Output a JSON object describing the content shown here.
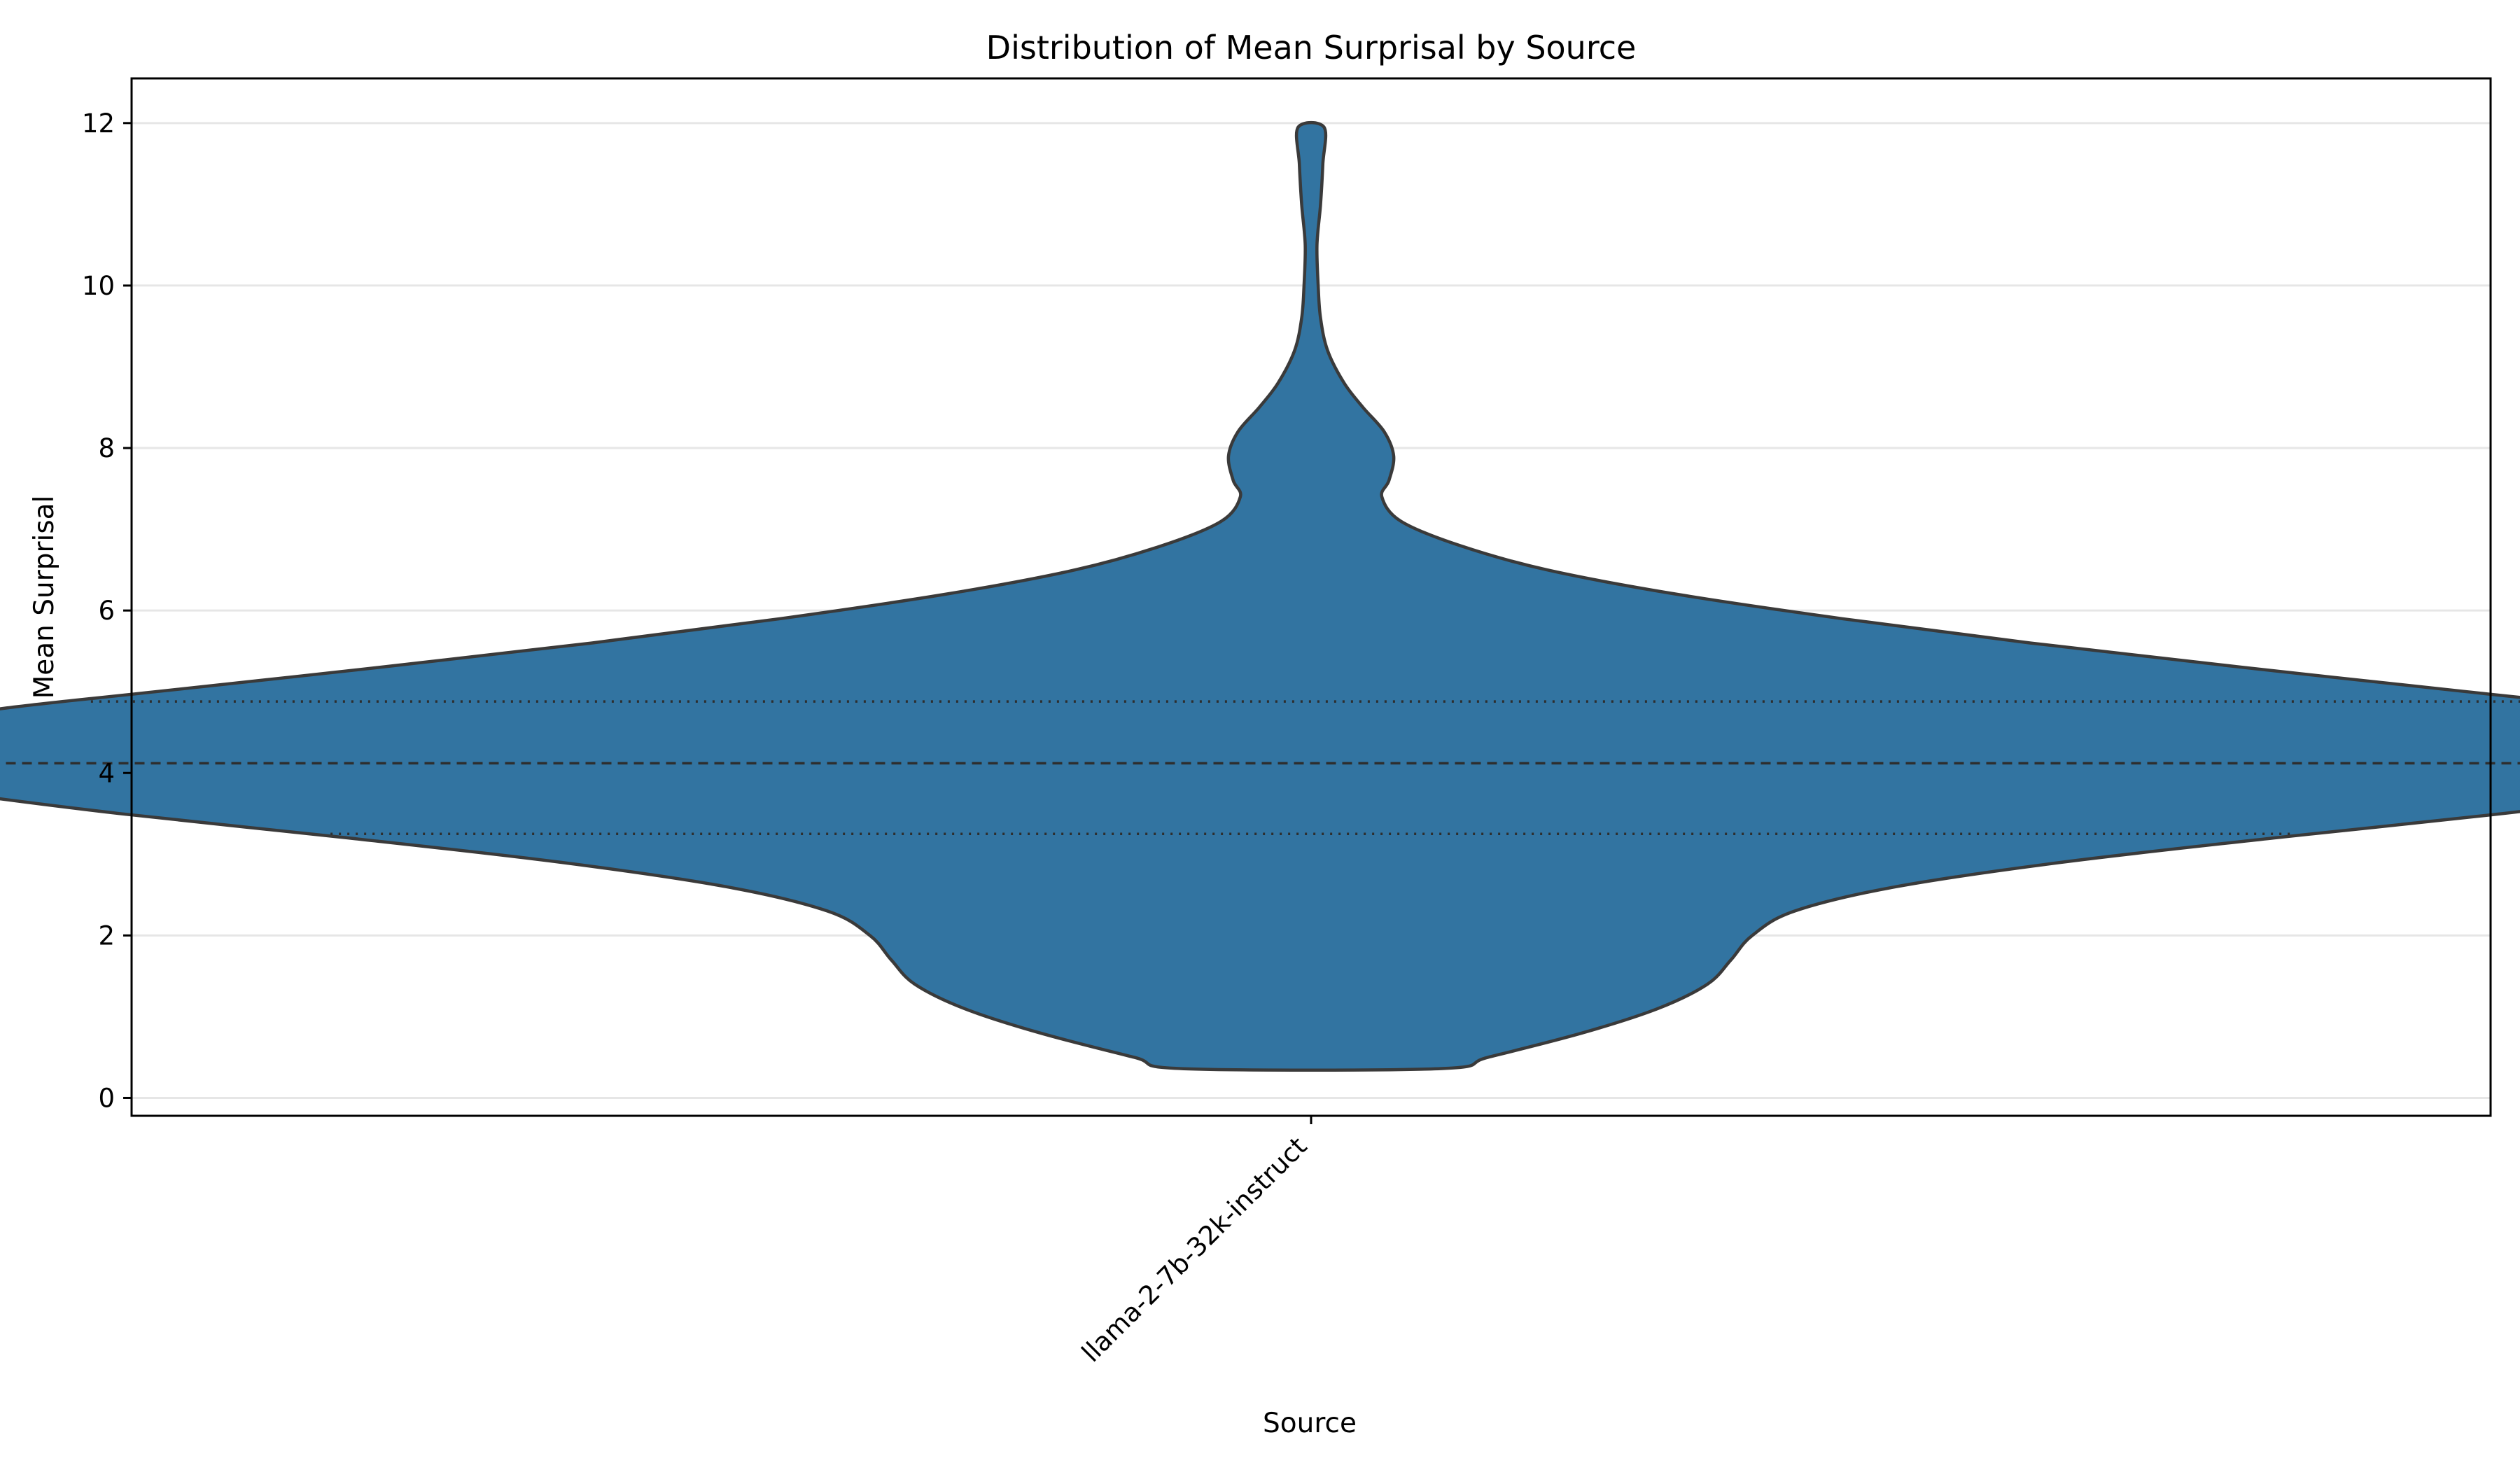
{
  "chart_data": {
    "type": "violin",
    "title": "Distribution of Mean Surprisal by Source",
    "xlabel": "Source",
    "ylabel": "Mean Surprisal",
    "categories": [
      "llama-2-7b-32k-instruct"
    ],
    "ylim": [
      -0.22,
      12.55
    ],
    "yticks": [
      0,
      2,
      4,
      6,
      8,
      10,
      12
    ],
    "grid": "y",
    "color": "#3274a1",
    "edge_color": "#3a3a3a",
    "violins": [
      {
        "name": "llama-2-7b-32k-instruct",
        "min": 0.36,
        "max": 11.95,
        "quartiles": {
          "q1": 3.25,
          "median": 4.12,
          "q3": 4.88
        },
        "density_profile": [
          {
            "y": 0.36,
            "half_width": 0.054
          },
          {
            "y": 0.5,
            "half_width": 0.075
          },
          {
            "y": 0.8,
            "half_width": 0.115
          },
          {
            "y": 1.1,
            "half_width": 0.147
          },
          {
            "y": 1.4,
            "half_width": 0.168
          },
          {
            "y": 1.7,
            "half_width": 0.178
          },
          {
            "y": 2.0,
            "half_width": 0.187
          },
          {
            "y": 2.3,
            "half_width": 0.205
          },
          {
            "y": 2.6,
            "half_width": 0.248
          },
          {
            "y": 2.9,
            "half_width": 0.318
          },
          {
            "y": 3.2,
            "half_width": 0.408
          },
          {
            "y": 3.5,
            "half_width": 0.505
          },
          {
            "y": 3.8,
            "half_width": 0.585
          },
          {
            "y": 4.0,
            "half_width": 0.623
          },
          {
            "y": 4.1,
            "half_width": 0.633
          },
          {
            "y": 4.2,
            "half_width": 0.639
          },
          {
            "y": 4.3,
            "half_width": 0.634
          },
          {
            "y": 4.4,
            "half_width": 0.624
          },
          {
            "y": 4.6,
            "half_width": 0.597
          },
          {
            "y": 4.8,
            "half_width": 0.553
          },
          {
            "y": 5.0,
            "half_width": 0.49
          },
          {
            "y": 5.3,
            "half_width": 0.395
          },
          {
            "y": 5.6,
            "half_width": 0.305
          },
          {
            "y": 5.9,
            "half_width": 0.225
          },
          {
            "y": 6.2,
            "half_width": 0.155
          },
          {
            "y": 6.5,
            "half_width": 0.1
          },
          {
            "y": 6.8,
            "half_width": 0.063
          },
          {
            "y": 7.1,
            "half_width": 0.038
          },
          {
            "y": 7.4,
            "half_width": 0.03
          },
          {
            "y": 7.6,
            "half_width": 0.033
          },
          {
            "y": 7.9,
            "half_width": 0.035
          },
          {
            "y": 8.2,
            "half_width": 0.031
          },
          {
            "y": 8.5,
            "half_width": 0.022
          },
          {
            "y": 8.8,
            "half_width": 0.014
          },
          {
            "y": 9.2,
            "half_width": 0.007
          },
          {
            "y": 9.6,
            "half_width": 0.004
          },
          {
            "y": 10.0,
            "half_width": 0.003
          },
          {
            "y": 10.5,
            "half_width": 0.0025
          },
          {
            "y": 11.0,
            "half_width": 0.004
          },
          {
            "y": 11.5,
            "half_width": 0.005
          },
          {
            "y": 11.95,
            "half_width": 0.0055
          }
        ]
      }
    ]
  }
}
